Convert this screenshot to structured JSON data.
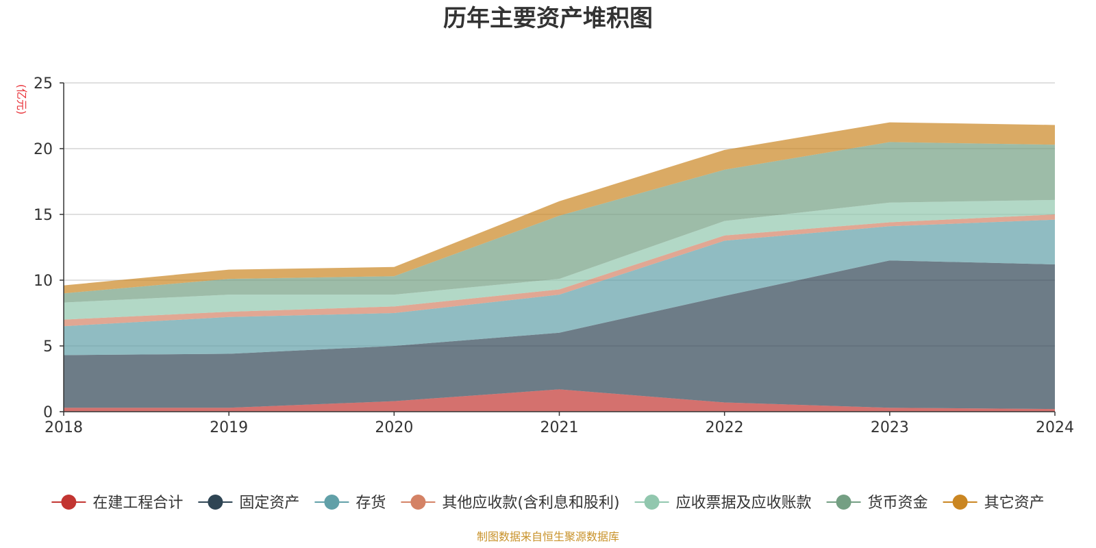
{
  "chart_data": {
    "type": "area",
    "stacked": true,
    "title": "历年主要资产堆积图",
    "unit_label": "(亿元)",
    "source": "制图数据来自恒生聚源数据库",
    "x": [
      "2018",
      "2019",
      "2020",
      "2021",
      "2022",
      "2023",
      "2024"
    ],
    "ylim": [
      0,
      25
    ],
    "yticks": [
      0,
      5,
      10,
      15,
      20,
      25
    ],
    "grid": true,
    "legend_position": "bottom",
    "series": [
      {
        "name": "在建工程合计",
        "color": "#c23531",
        "values": [
          0.3,
          0.3,
          0.8,
          1.7,
          0.7,
          0.3,
          0.2
        ]
      },
      {
        "name": "固定资产",
        "color": "#2f4554",
        "values": [
          4.0,
          4.1,
          4.2,
          4.3,
          8.1,
          11.2,
          11.0
        ]
      },
      {
        "name": "存货",
        "color": "#61a0a8",
        "values": [
          2.2,
          2.8,
          2.5,
          2.9,
          4.2,
          2.6,
          3.4
        ]
      },
      {
        "name": "其他应收款(含利息和股利)",
        "color": "#d48265",
        "values": [
          0.5,
          0.4,
          0.5,
          0.4,
          0.4,
          0.3,
          0.4
        ]
      },
      {
        "name": "应收票据及应收账款",
        "color": "#91c7ae",
        "values": [
          1.3,
          1.3,
          0.9,
          0.8,
          1.1,
          1.5,
          1.1
        ]
      },
      {
        "name": "货币资金",
        "color": "#749f83",
        "values": [
          0.7,
          1.2,
          1.4,
          4.8,
          3.9,
          4.6,
          4.2
        ]
      },
      {
        "name": "其它资产",
        "color": "#ca8622",
        "values": [
          0.6,
          0.7,
          0.7,
          1.1,
          1.5,
          1.5,
          1.5
        ]
      }
    ]
  }
}
